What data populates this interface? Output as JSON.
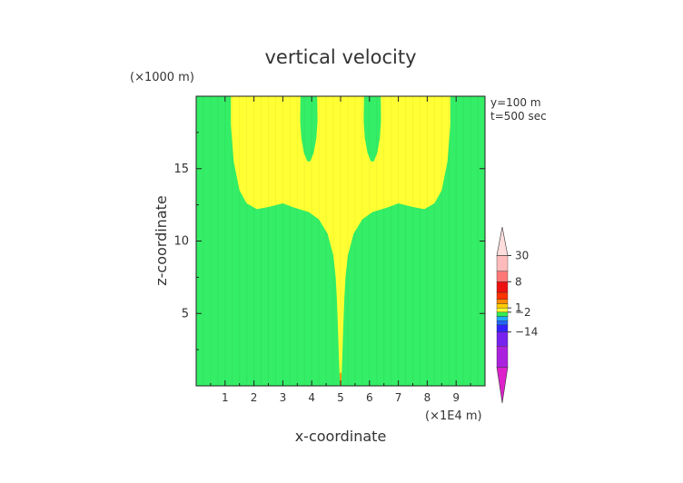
{
  "chart_data": {
    "type": "heatmap",
    "title": "vertical velocity",
    "xlabel": "x-coordinate",
    "ylabel": "z-coordinate",
    "x_unit": "(×1E4 m)",
    "y_unit": "(×1000 m)",
    "annotations": [
      "y=100 m",
      "t=500 sec"
    ],
    "xlim": [
      0,
      10
    ],
    "ylim": [
      0,
      20
    ],
    "x_ticks": [
      "1",
      "2",
      "3",
      "4",
      "5",
      "6",
      "7",
      "8",
      "9"
    ],
    "y_ticks": [
      "5",
      "10",
      "15"
    ],
    "colorbar": {
      "tick_labels": [
        "30",
        "8",
        "1",
        "−2",
        "−14"
      ],
      "levels": [
        {
          "color": "#dd22cc"
        },
        {
          "color": "#aa22dd"
        },
        {
          "color": "#7722ee"
        },
        {
          "color": "#3322ff"
        },
        {
          "color": "#2266ff"
        },
        {
          "color": "#22aaff"
        },
        {
          "color": "#33ee55"
        },
        {
          "color": "#ffff33"
        },
        {
          "color": "#ffcc00"
        },
        {
          "color": "#ff8800"
        },
        {
          "color": "#ff3300"
        },
        {
          "color": "#ee1111"
        },
        {
          "color": "#ff7777"
        },
        {
          "color": "#ffbbbb"
        },
        {
          "color": "#ffdddd"
        }
      ]
    },
    "field": {
      "background_color": "#33ee66",
      "plume_color": "#ffff33",
      "core_color": "#ff8800",
      "plume_center_x": 5.0,
      "stem_base_z": 0.0,
      "stem_top_z": 12.0,
      "crown_left_x": 1.2,
      "crown_right_x": 8.8,
      "crown_bottom_z": 12.2,
      "inner_gap_centers_x": [
        3.9,
        6.1
      ],
      "inner_gap_bottom_z": 15.5
    }
  }
}
